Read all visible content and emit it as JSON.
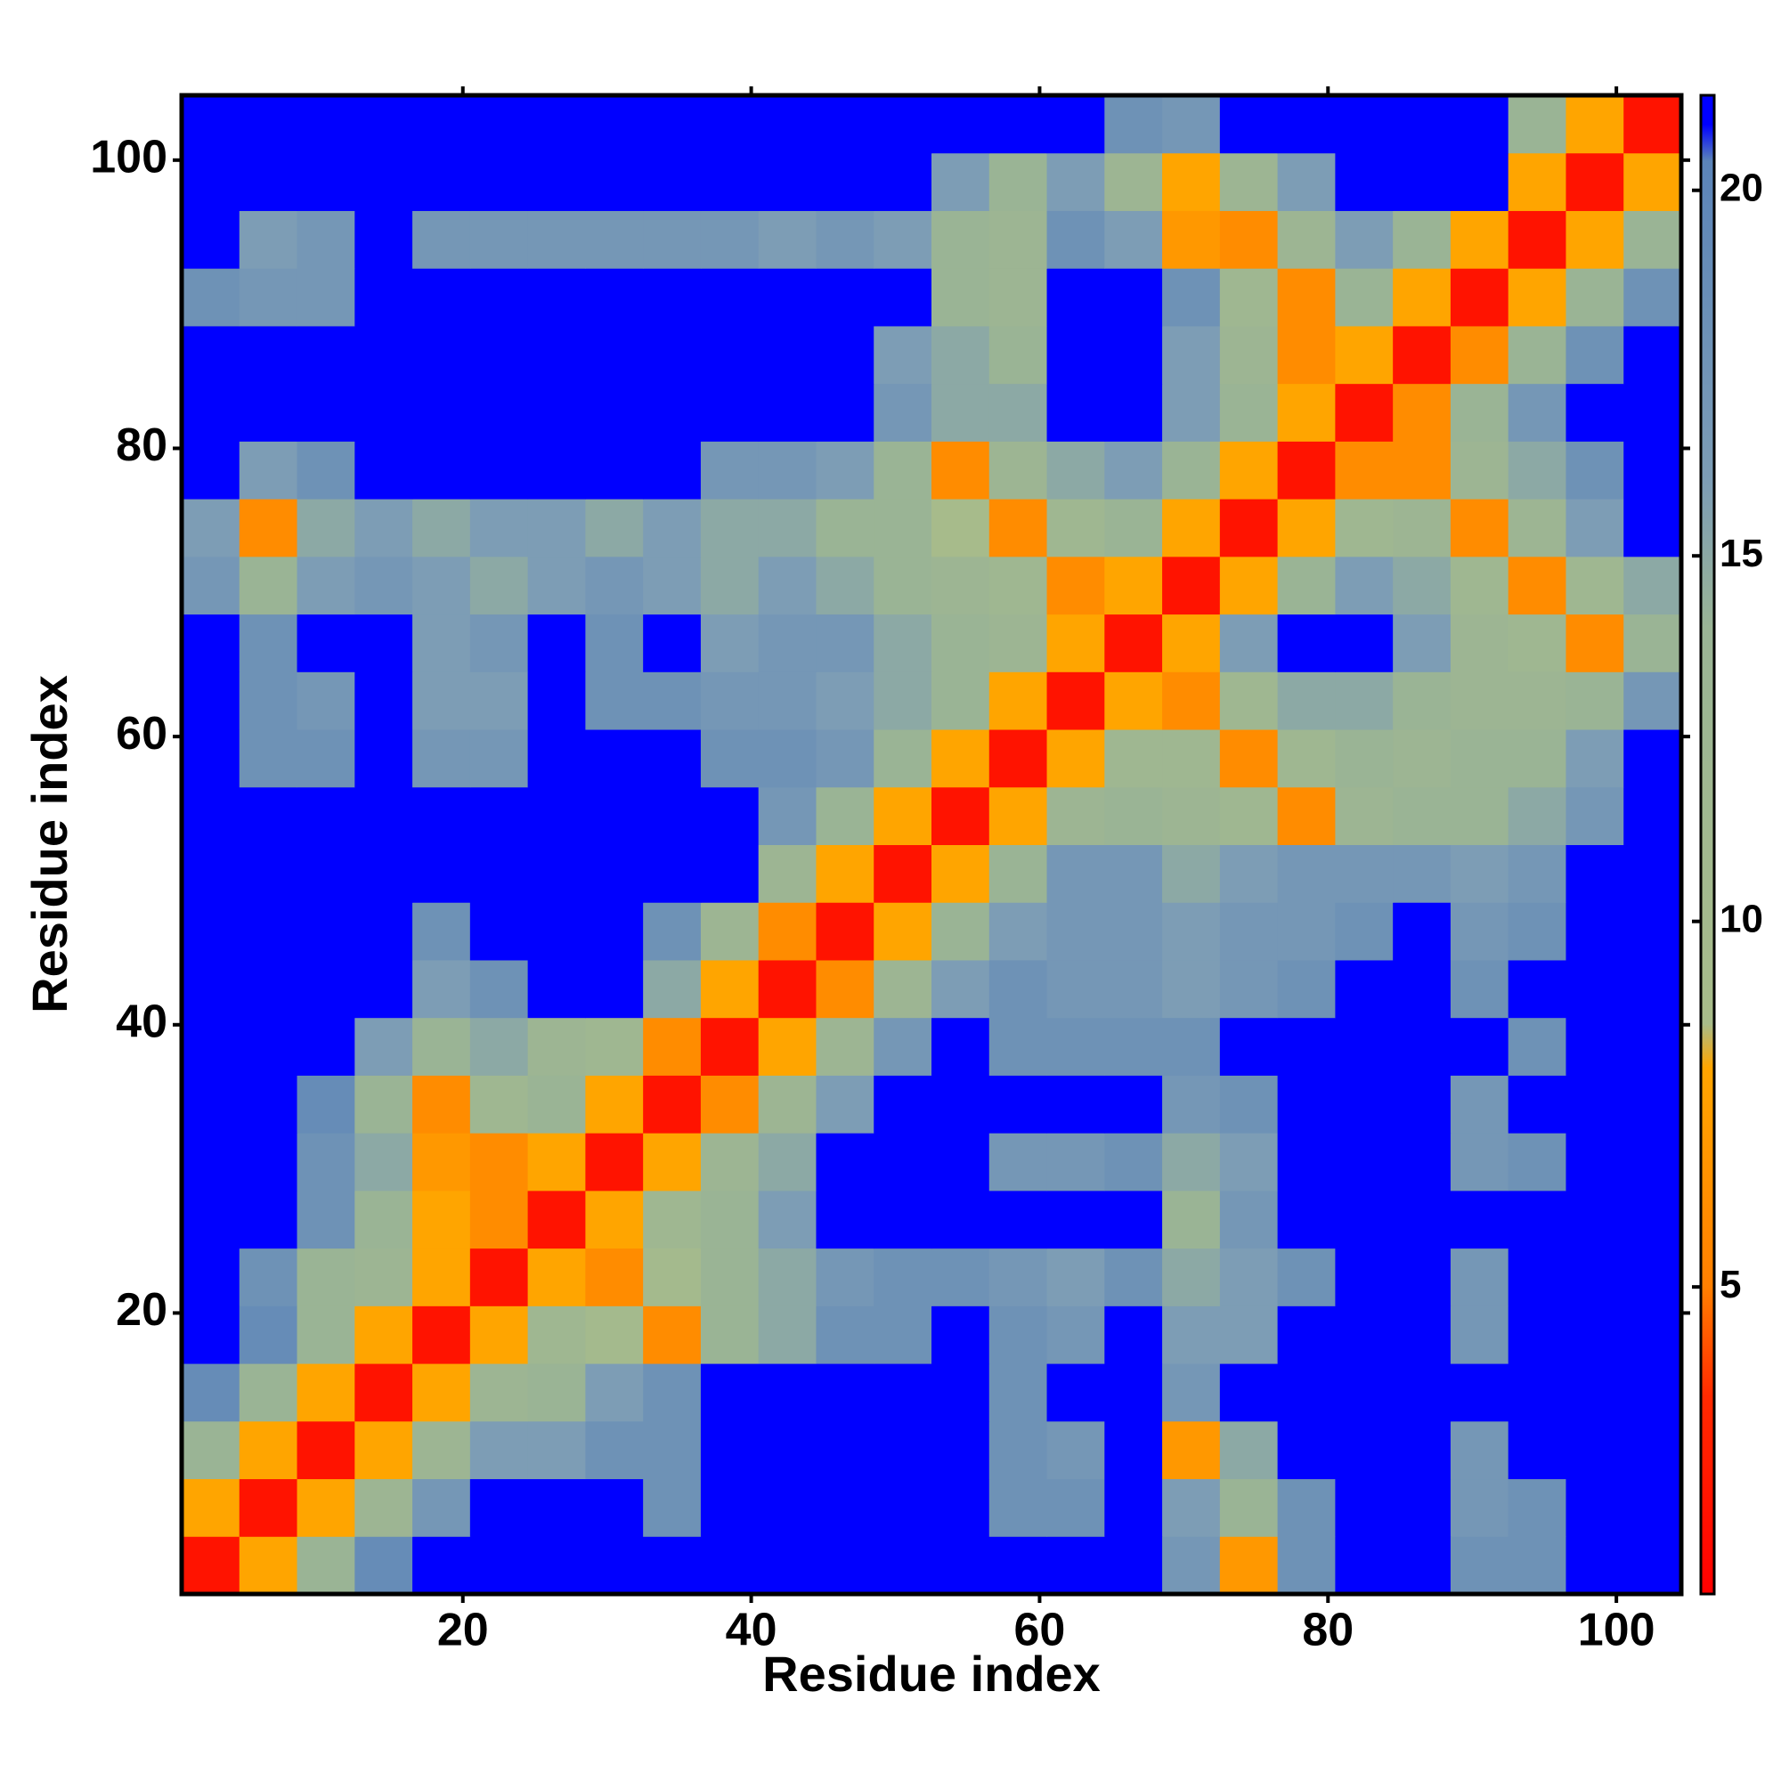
{
  "chart_data": {
    "type": "heatmap",
    "xlabel": "Residue index",
    "ylabel": "Residue index",
    "xlim": [
      0.5,
      104.5
    ],
    "ylim": [
      0.5,
      104.5
    ],
    "xticks": [
      20,
      40,
      60,
      80,
      100
    ],
    "yticks": [
      20,
      40,
      60,
      80,
      100
    ],
    "xbins": [
      0.5,
      4.5,
      8.5,
      12.5,
      16.5,
      20.5,
      24.5,
      28.5,
      32.5,
      36.5,
      40.5,
      44.5,
      48.5,
      52.5,
      56.5,
      60.5,
      64.5,
      68.5,
      72.5,
      76.5,
      80.5,
      84.5,
      88.5,
      92.5,
      96.5,
      100.5,
      104.5
    ],
    "ybins": [
      0.5,
      4.5,
      8.5,
      12.5,
      16.5,
      20.5,
      24.5,
      28.5,
      32.5,
      36.5,
      40.5,
      44.5,
      48.5,
      52.5,
      56.5,
      60.5,
      64.5,
      68.5,
      72.5,
      76.5,
      80.5,
      84.5,
      88.5,
      92.5,
      96.5,
      100.5,
      104.5
    ],
    "zlim": [
      0.8,
      21.3
    ],
    "colorbar_ticks": [
      5,
      10,
      15,
      20
    ],
    "colorscale": [
      [
        0.8,
        "#ff0000"
      ],
      [
        3.5,
        "#ff2a00"
      ],
      [
        5,
        "#ff7f00"
      ],
      [
        8,
        "#ffa500"
      ],
      [
        8.6,
        "#a8bc8a"
      ],
      [
        14,
        "#9ab495"
      ],
      [
        16,
        "#7d9db5"
      ],
      [
        20.4,
        "#5b84b8"
      ],
      [
        20.9,
        "#0000ff"
      ],
      [
        21.3,
        "#0000ff"
      ]
    ],
    "z": [
      [
        2,
        8,
        14,
        19,
        21,
        21,
        21,
        21,
        21,
        21,
        21,
        21,
        21,
        21,
        21,
        21,
        21,
        17,
        7,
        18,
        21,
        21,
        18,
        18,
        21,
        21
      ],
      [
        8,
        2,
        8,
        13,
        17,
        21,
        21,
        21,
        18,
        21,
        21,
        21,
        21,
        21,
        18,
        18,
        21,
        16,
        14,
        18,
        21,
        21,
        17,
        18,
        21,
        21
      ],
      [
        14,
        8,
        2,
        8,
        13,
        16,
        16,
        18,
        18,
        21,
        21,
        21,
        21,
        21,
        18,
        17,
        21,
        7,
        15,
        21,
        21,
        21,
        17,
        21,
        21,
        21
      ],
      [
        19,
        14,
        8,
        2,
        8,
        13,
        14,
        16,
        18,
        21,
        21,
        21,
        21,
        21,
        18,
        21,
        21,
        17,
        21,
        21,
        21,
        21,
        21,
        21,
        21,
        21
      ],
      [
        21,
        19,
        14,
        8,
        2,
        8,
        12,
        10,
        6,
        14,
        15,
        18,
        18,
        21,
        18,
        17,
        21,
        16,
        16,
        21,
        21,
        21,
        17,
        21,
        21,
        21
      ],
      [
        21,
        18,
        14,
        13,
        8,
        2,
        8,
        6,
        10,
        14,
        15,
        17,
        18,
        18,
        17,
        16,
        18,
        15,
        16,
        18,
        21,
        21,
        17,
        21,
        21,
        21
      ],
      [
        21,
        21,
        18,
        14,
        8,
        6,
        2,
        8,
        12,
        14,
        16,
        21,
        21,
        21,
        21,
        21,
        21,
        14,
        17,
        21,
        21,
        21,
        21,
        21,
        21,
        21
      ],
      [
        21,
        21,
        18,
        15,
        7,
        6,
        8,
        2,
        8,
        13,
        15,
        21,
        21,
        21,
        17,
        17,
        18,
        15,
        16,
        21,
        21,
        21,
        17,
        18,
        21,
        21
      ],
      [
        21,
        21,
        19,
        14,
        6,
        12,
        14,
        8,
        2,
        6,
        13,
        16,
        21,
        21,
        21,
        21,
        21,
        17,
        18,
        21,
        21,
        21,
        17,
        21,
        21,
        21
      ],
      [
        21,
        21,
        21,
        16,
        14,
        15,
        13,
        12,
        6,
        2,
        8,
        13,
        17,
        21,
        18,
        18,
        18,
        18,
        21,
        21,
        21,
        21,
        21,
        18,
        21,
        21
      ],
      [
        21,
        21,
        21,
        21,
        16,
        18,
        21,
        21,
        15,
        8,
        2,
        6,
        13,
        16,
        18,
        17,
        17,
        16,
        17,
        18,
        21,
        21,
        18,
        21,
        21,
        21
      ],
      [
        21,
        21,
        21,
        21,
        18,
        21,
        21,
        21,
        18,
        13,
        6,
        2,
        8,
        14,
        16,
        17,
        17,
        16,
        17,
        17,
        18,
        21,
        17,
        18,
        21,
        21
      ],
      [
        21,
        21,
        21,
        21,
        21,
        21,
        21,
        21,
        21,
        21,
        13,
        8,
        2,
        8,
        14,
        17,
        17,
        15,
        16,
        17,
        17,
        17,
        16,
        17,
        21,
        21
      ],
      [
        21,
        21,
        21,
        21,
        21,
        21,
        21,
        21,
        21,
        21,
        17,
        14,
        8,
        2,
        8,
        13,
        14,
        13,
        12,
        6,
        13,
        14,
        14,
        15,
        17,
        21
      ],
      [
        21,
        18,
        18,
        21,
        17,
        17,
        21,
        21,
        21,
        18,
        18,
        17,
        14,
        8,
        2,
        8,
        12,
        12,
        6,
        12,
        14,
        13,
        14,
        14,
        16,
        21
      ],
      [
        21,
        18,
        17,
        21,
        16,
        16,
        21,
        18,
        18,
        17,
        17,
        16,
        15,
        14,
        8,
        2,
        8,
        6,
        12,
        15,
        15,
        14,
        13,
        13,
        14,
        17
      ],
      [
        21,
        18,
        21,
        21,
        16,
        17,
        21,
        18,
        21,
        16,
        17,
        17,
        15,
        14,
        13,
        8,
        2,
        8,
        16,
        21,
        21,
        16,
        13,
        12,
        6,
        14
      ],
      [
        17,
        14,
        16,
        17,
        16,
        15,
        16,
        17,
        16,
        15,
        16,
        15,
        14,
        13,
        12,
        6,
        8,
        2,
        8,
        14,
        16,
        15,
        12,
        6,
        12,
        15
      ],
      [
        16,
        6,
        15,
        16,
        15,
        16,
        16,
        15,
        16,
        15,
        15,
        14,
        14,
        9,
        6,
        12,
        14,
        8,
        2,
        8,
        12,
        13,
        6,
        13,
        16,
        21
      ],
      [
        21,
        16,
        18,
        21,
        21,
        21,
        21,
        21,
        21,
        17,
        17,
        16,
        14,
        6,
        13,
        15,
        16,
        14,
        8,
        2,
        6,
        6,
        13,
        15,
        18,
        21
      ],
      [
        21,
        21,
        21,
        21,
        21,
        21,
        21,
        21,
        21,
        21,
        21,
        21,
        17,
        15,
        15,
        21,
        21,
        16,
        14,
        8,
        2,
        6,
        14,
        17,
        21,
        21
      ],
      [
        21,
        21,
        21,
        21,
        21,
        21,
        21,
        21,
        21,
        21,
        21,
        21,
        16,
        15,
        14,
        21,
        21,
        16,
        13,
        6,
        8,
        2,
        6,
        14,
        18,
        21
      ],
      [
        18,
        17,
        17,
        21,
        21,
        21,
        21,
        21,
        21,
        21,
        21,
        21,
        21,
        14,
        13,
        21,
        21,
        18,
        12,
        6,
        14,
        8,
        2,
        8,
        14,
        18
      ],
      [
        21,
        16,
        17,
        21,
        17,
        17,
        17,
        17,
        17,
        17,
        16,
        17,
        16,
        14,
        13,
        18,
        16,
        7,
        6,
        13,
        16,
        14,
        8,
        2,
        8,
        14
      ],
      [
        21,
        21,
        21,
        21,
        21,
        21,
        21,
        21,
        21,
        21,
        21,
        21,
        21,
        16,
        14,
        16,
        13,
        8,
        13,
        16,
        21,
        21,
        21,
        8,
        2,
        8
      ],
      [
        21,
        21,
        21,
        21,
        21,
        21,
        21,
        21,
        21,
        21,
        21,
        21,
        21,
        21,
        21,
        21,
        18,
        17,
        21,
        21,
        21,
        21,
        21,
        14,
        8,
        2
      ]
    ]
  }
}
